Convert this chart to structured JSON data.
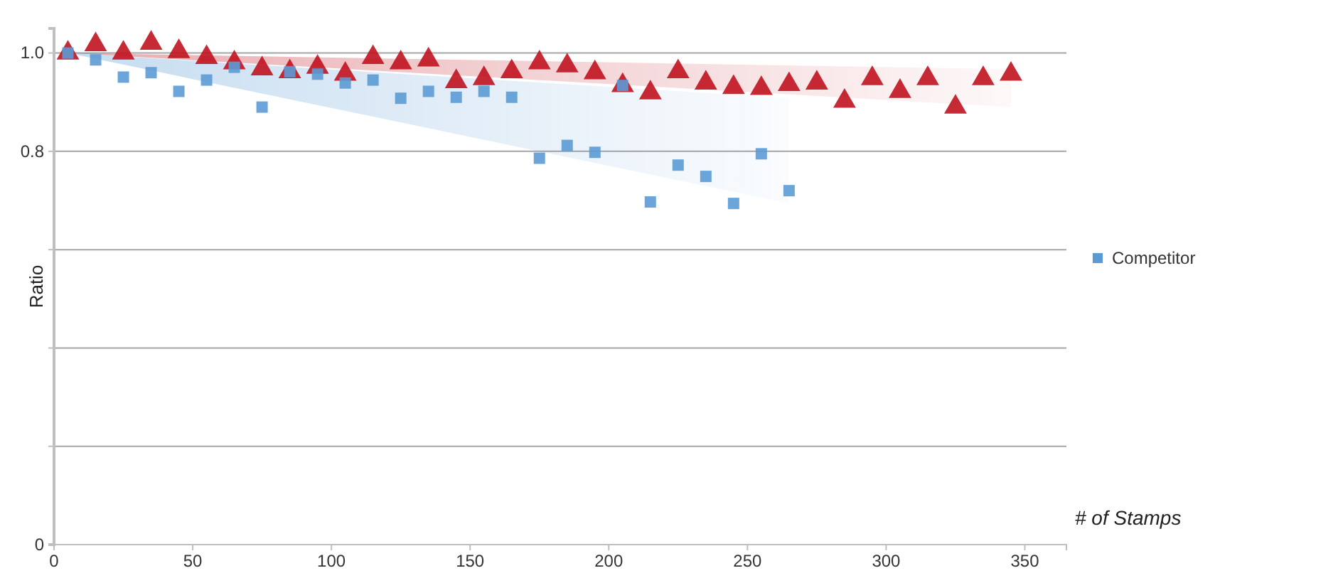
{
  "chart_data": {
    "type": "scatter",
    "xlabel": "# of Stamps",
    "ylabel": "Ratio",
    "xlim": [
      0,
      365
    ],
    "xticks": [
      0,
      50,
      100,
      150,
      200,
      250,
      300,
      350
    ],
    "ylim": [
      0,
      1.05
    ],
    "yticks": [
      0,
      {
        "value": 0.2,
        "label": null
      },
      {
        "value": 0.4,
        "label": null
      },
      {
        "value": 0.6,
        "label": null
      },
      {
        "value": 0.8,
        "label": "0.8"
      },
      {
        "value": 1.0,
        "label": "1.0"
      }
    ],
    "grid": "y",
    "legend": "right",
    "series": [
      {
        "color": "#c0131f",
        "marker": "triangle",
        "x": [
          5,
          15,
          25,
          35,
          45,
          55,
          65,
          75,
          85,
          95,
          105,
          115,
          125,
          135,
          145,
          155,
          165,
          175,
          185,
          195,
          205,
          215,
          225,
          235,
          245,
          255,
          265,
          275,
          285,
          295,
          305,
          315,
          325,
          335,
          345
        ],
        "values": [
          1.0,
          1.017,
          1.0,
          1.02,
          1.003,
          0.991,
          0.98,
          0.968,
          0.962,
          0.971,
          0.957,
          0.991,
          0.98,
          0.986,
          0.942,
          0.948,
          0.962,
          0.98,
          0.974,
          0.96,
          0.934,
          0.919,
          0.962,
          0.939,
          0.93,
          0.928,
          0.936,
          0.939,
          0.902,
          0.948,
          0.922,
          0.948,
          0.89,
          0.948,
          0.957
        ]
      },
      {
        "name": "Competitor",
        "color": "#5b9bd5",
        "marker": "square",
        "x": [
          5,
          15,
          25,
          35,
          45,
          55,
          65,
          75,
          85,
          95,
          105,
          115,
          125,
          135,
          145,
          155,
          165,
          175,
          185,
          195,
          205,
          215,
          225,
          235,
          245,
          255,
          265
        ],
        "values": [
          1.0,
          0.986,
          0.951,
          0.96,
          0.922,
          0.945,
          0.971,
          0.89,
          0.962,
          0.957,
          0.939,
          0.945,
          0.908,
          0.922,
          0.91,
          0.922,
          0.91,
          0.786,
          0.812,
          0.798,
          0.934,
          0.697,
          0.772,
          0.749,
          0.694,
          0.795,
          0.72
        ]
      }
    ]
  }
}
